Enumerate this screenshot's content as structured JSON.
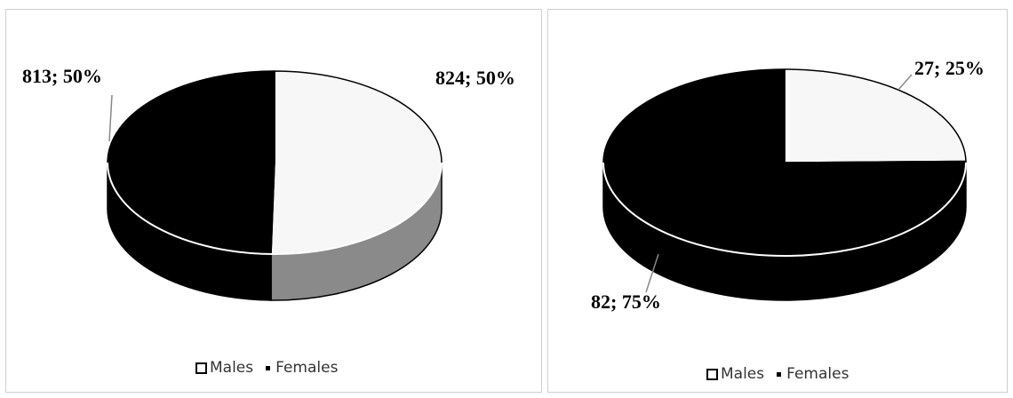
{
  "chart_data": [
    {
      "type": "pie",
      "variant": "3d",
      "categories": [
        "Males",
        "Females"
      ],
      "values": [
        824,
        813
      ],
      "percentages": [
        50,
        50
      ],
      "data_labels": [
        "824; 50%",
        "813; 50%"
      ],
      "legend": [
        "Males",
        "Females"
      ],
      "legend_position": "bottom",
      "colors": {
        "Males": "#f7f7f7",
        "Females": "#000000"
      }
    },
    {
      "type": "pie",
      "variant": "3d",
      "categories": [
        "Males",
        "Females"
      ],
      "values": [
        27,
        82
      ],
      "percentages": [
        25,
        75
      ],
      "data_labels": [
        "27; 25%",
        "82; 75%"
      ],
      "legend": [
        "Males",
        "Females"
      ],
      "legend_position": "bottom",
      "colors": {
        "Males": "#f7f7f7",
        "Females": "#000000"
      }
    }
  ]
}
